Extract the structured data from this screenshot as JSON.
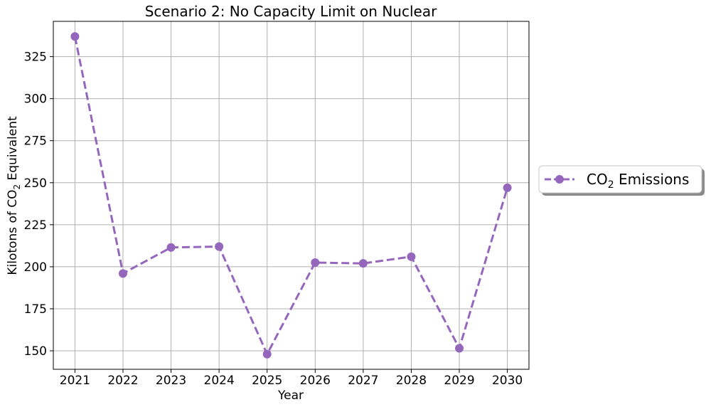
{
  "chart_data": {
    "type": "line",
    "title": "Scenario 2: No Capacity Limit on Nuclear",
    "xlabel": "Year",
    "ylabel_main": "Kilotons of CO",
    "ylabel_sub": "2",
    "ylabel_tail": " Equivalent",
    "x": [
      2021,
      2022,
      2023,
      2024,
      2025,
      2026,
      2027,
      2028,
      2029,
      2030
    ],
    "series": [
      {
        "name_main": "CO",
        "name_sub": "2",
        "name_tail": " Emissions",
        "values": [
          337,
          196,
          211.5,
          212,
          148,
          202.5,
          202,
          206,
          151.5,
          247
        ],
        "color": "#9467bd",
        "line_style": "dashed",
        "marker": "circle"
      }
    ],
    "xticks": [
      "2021",
      "2022",
      "2023",
      "2024",
      "2025",
      "2026",
      "2027",
      "2028",
      "2029",
      "2030"
    ],
    "yticks": [
      150,
      175,
      200,
      225,
      250,
      275,
      300,
      325
    ],
    "xlim": [
      2020.55,
      2030.45
    ],
    "ylim": [
      139,
      346
    ],
    "grid": true,
    "legend_position": "right",
    "colors": {
      "grid": "#b0b0b0",
      "axes": "#000000",
      "series": "#9467bd"
    }
  }
}
